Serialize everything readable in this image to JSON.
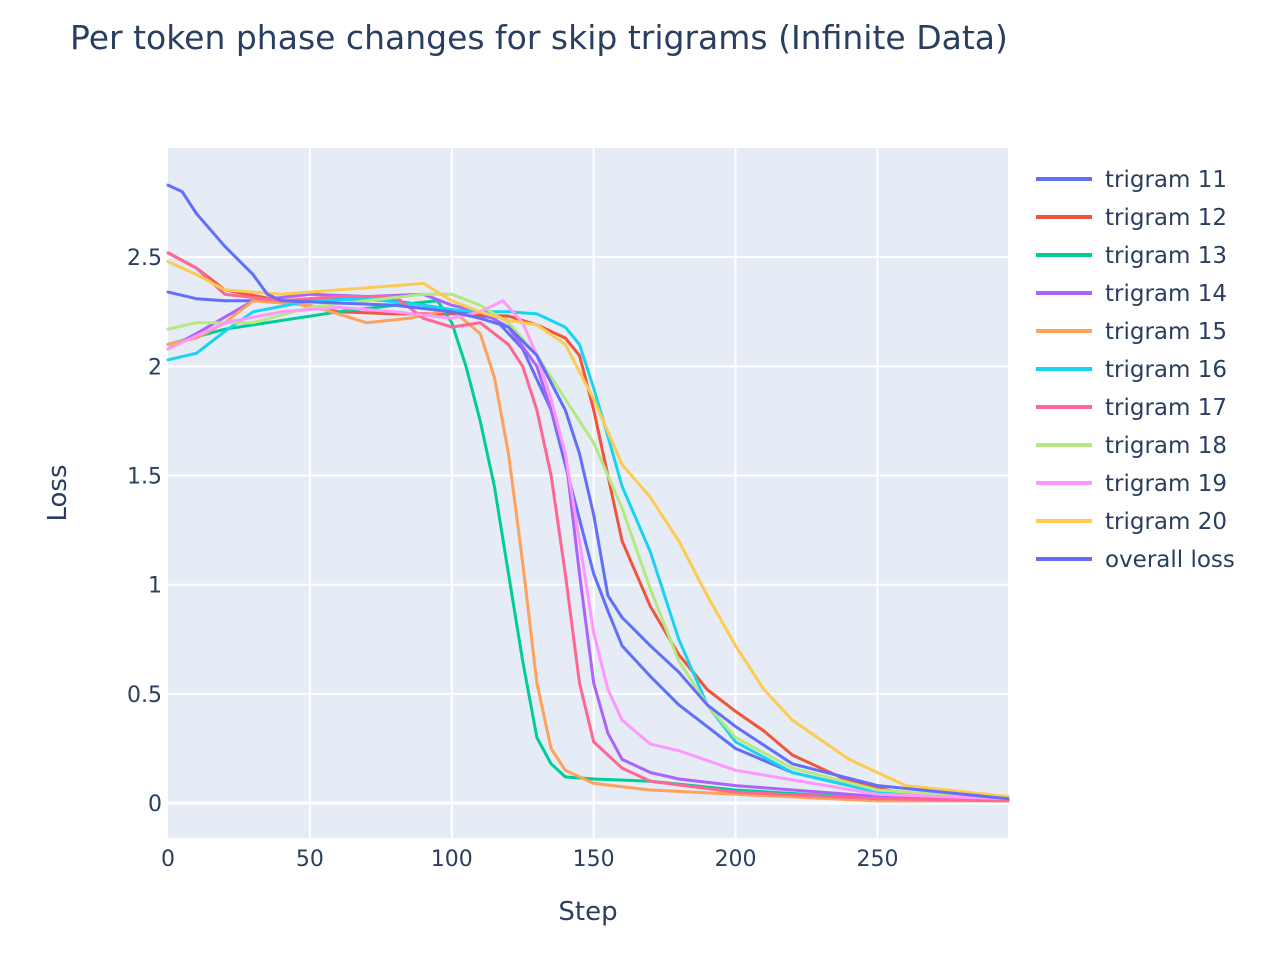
{
  "chart_data": {
    "type": "line",
    "title": "Per token phase changes for skip trigrams (Infinite Data)",
    "xlabel": "Step",
    "ylabel": "Loss",
    "xlim": [
      0,
      296
    ],
    "ylim": [
      -0.16,
      3.0
    ],
    "x_ticks": [
      0,
      50,
      100,
      150,
      200,
      250
    ],
    "x_tick_labels": [
      "0",
      "50",
      "100",
      "150",
      "200",
      "250"
    ],
    "y_ticks": [
      0,
      0.5,
      1,
      1.5,
      2,
      2.5
    ],
    "y_tick_labels": [
      "0",
      "0.5",
      "1",
      "1.5",
      "2",
      "2.5"
    ],
    "grid": true,
    "plot_background": "#e5ecf6",
    "legend_position": "right",
    "series": [
      {
        "name": "trigram 11",
        "color": "#636efa",
        "x": [
          0,
          10,
          20,
          40,
          60,
          80,
          100,
          115,
          125,
          135,
          140,
          145,
          150,
          155,
          160,
          170,
          180,
          190,
          200,
          220,
          250,
          296
        ],
        "y": [
          2.34,
          2.31,
          2.3,
          2.3,
          2.31,
          2.3,
          2.26,
          2.22,
          2.08,
          1.8,
          1.55,
          1.3,
          1.05,
          0.88,
          0.72,
          0.58,
          0.45,
          0.35,
          0.25,
          0.14,
          0.05,
          0.02
        ]
      },
      {
        "name": "trigram 12",
        "color": "#EF553B",
        "x": [
          0,
          10,
          20,
          40,
          60,
          80,
          100,
          120,
          130,
          140,
          145,
          150,
          160,
          170,
          180,
          190,
          200,
          210,
          220,
          240,
          260,
          296
        ],
        "y": [
          2.52,
          2.45,
          2.35,
          2.3,
          2.25,
          2.24,
          2.24,
          2.23,
          2.19,
          2.13,
          2.05,
          1.8,
          1.2,
          0.9,
          0.68,
          0.52,
          0.42,
          0.33,
          0.22,
          0.1,
          0.04,
          0.02
        ]
      },
      {
        "name": "trigram 13",
        "color": "#00cc96",
        "x": [
          0,
          20,
          40,
          60,
          80,
          95,
          100,
          105,
          110,
          115,
          120,
          125,
          130,
          135,
          140,
          150,
          170,
          200,
          250,
          296
        ],
        "y": [
          2.1,
          2.17,
          2.21,
          2.25,
          2.28,
          2.3,
          2.2,
          2.0,
          1.75,
          1.45,
          1.05,
          0.65,
          0.3,
          0.18,
          0.12,
          0.11,
          0.1,
          0.06,
          0.02,
          0.01
        ]
      },
      {
        "name": "trigram 14",
        "color": "#ab63fa",
        "x": [
          0,
          10,
          30,
          50,
          70,
          90,
          100,
          110,
          120,
          130,
          140,
          145,
          150,
          155,
          160,
          170,
          180,
          200,
          250,
          296
        ],
        "y": [
          2.08,
          2.15,
          2.3,
          2.33,
          2.32,
          2.33,
          2.28,
          2.25,
          2.18,
          2.0,
          1.6,
          1.05,
          0.55,
          0.32,
          0.2,
          0.14,
          0.11,
          0.08,
          0.03,
          0.01
        ]
      },
      {
        "name": "trigram 15",
        "color": "#FFA15A",
        "x": [
          0,
          10,
          20,
          30,
          50,
          70,
          85,
          100,
          110,
          115,
          120,
          125,
          130,
          135,
          140,
          150,
          170,
          200,
          250,
          296
        ],
        "y": [
          2.1,
          2.13,
          2.2,
          2.3,
          2.28,
          2.2,
          2.22,
          2.26,
          2.15,
          1.95,
          1.6,
          1.1,
          0.55,
          0.25,
          0.15,
          0.09,
          0.06,
          0.04,
          0.01,
          0.01
        ]
      },
      {
        "name": "trigram 16",
        "color": "#19d3f3",
        "x": [
          0,
          10,
          20,
          30,
          50,
          70,
          90,
          100,
          110,
          120,
          130,
          140,
          145,
          150,
          155,
          160,
          170,
          180,
          190,
          200,
          220,
          250,
          296
        ],
        "y": [
          2.03,
          2.06,
          2.16,
          2.25,
          2.3,
          2.31,
          2.28,
          2.26,
          2.25,
          2.25,
          2.24,
          2.18,
          2.1,
          1.9,
          1.68,
          1.45,
          1.15,
          0.75,
          0.45,
          0.28,
          0.14,
          0.05,
          0.02
        ]
      },
      {
        "name": "trigram 17",
        "color": "#FF6692",
        "x": [
          0,
          10,
          20,
          40,
          60,
          80,
          90,
          100,
          110,
          120,
          125,
          130,
          135,
          140,
          145,
          150,
          155,
          160,
          170,
          200,
          250,
          296
        ],
        "y": [
          2.52,
          2.45,
          2.33,
          2.3,
          2.32,
          2.32,
          2.22,
          2.18,
          2.2,
          2.1,
          2.0,
          1.8,
          1.5,
          1.05,
          0.55,
          0.28,
          0.22,
          0.16,
          0.1,
          0.05,
          0.02,
          0.01
        ]
      },
      {
        "name": "trigram 18",
        "color": "#B6E880",
        "x": [
          0,
          10,
          20,
          30,
          50,
          70,
          90,
          100,
          110,
          120,
          130,
          140,
          150,
          160,
          170,
          180,
          190,
          200,
          220,
          250,
          296
        ],
        "y": [
          2.17,
          2.2,
          2.2,
          2.2,
          2.27,
          2.3,
          2.33,
          2.33,
          2.28,
          2.2,
          2.05,
          1.85,
          1.65,
          1.35,
          0.98,
          0.65,
          0.45,
          0.3,
          0.16,
          0.06,
          0.02
        ]
      },
      {
        "name": "trigram 19",
        "color": "#FF97FF",
        "x": [
          0,
          10,
          20,
          40,
          60,
          80,
          100,
          110,
          118,
          125,
          130,
          135,
          140,
          145,
          150,
          155,
          160,
          170,
          180,
          200,
          250,
          296
        ],
        "y": [
          2.08,
          2.14,
          2.2,
          2.25,
          2.27,
          2.25,
          2.22,
          2.25,
          2.3,
          2.2,
          2.05,
          1.85,
          1.6,
          1.2,
          0.78,
          0.52,
          0.38,
          0.27,
          0.24,
          0.15,
          0.04,
          0.02
        ]
      },
      {
        "name": "trigram 20",
        "color": "#FECB52",
        "x": [
          0,
          10,
          20,
          40,
          60,
          80,
          90,
          100,
          110,
          120,
          130,
          140,
          150,
          160,
          170,
          180,
          190,
          200,
          210,
          220,
          240,
          260,
          296
        ],
        "y": [
          2.48,
          2.42,
          2.35,
          2.33,
          2.35,
          2.37,
          2.38,
          2.3,
          2.25,
          2.21,
          2.19,
          2.1,
          1.85,
          1.55,
          1.4,
          1.2,
          0.95,
          0.72,
          0.52,
          0.38,
          0.2,
          0.08,
          0.03
        ]
      },
      {
        "name": "overall loss",
        "color": "#636efa",
        "x": [
          0,
          5,
          10,
          20,
          30,
          35,
          40,
          60,
          80,
          100,
          110,
          120,
          130,
          140,
          145,
          150,
          155,
          160,
          170,
          180,
          190,
          200,
          220,
          250,
          296
        ],
        "y": [
          2.83,
          2.8,
          2.7,
          2.55,
          2.42,
          2.33,
          2.3,
          2.29,
          2.28,
          2.25,
          2.22,
          2.18,
          2.05,
          1.8,
          1.6,
          1.32,
          0.95,
          0.85,
          0.72,
          0.6,
          0.45,
          0.35,
          0.18,
          0.08,
          0.02
        ]
      }
    ]
  }
}
